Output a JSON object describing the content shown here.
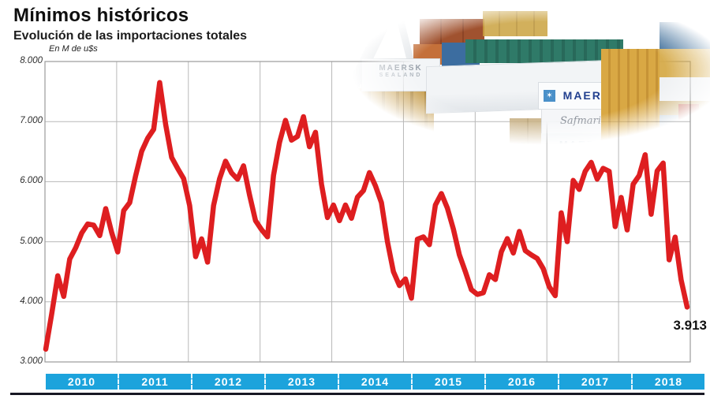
{
  "header": {
    "title": "Mínimos históricos",
    "subtitle": "Evolución de las importaciones totales"
  },
  "chart_data": {
    "type": "line",
    "title": "Evolución de las importaciones totales",
    "unit_label": "En M de u$s",
    "ylabel": "En M de u$s",
    "ylim": [
      3000,
      8000
    ],
    "yticks": [
      "8.000",
      "7.000",
      "6.000",
      "5.000",
      "4.000",
      "3.000"
    ],
    "ytick_values": [
      8000,
      7000,
      6000,
      5000,
      4000,
      3000
    ],
    "grid": true,
    "legend_position": "none",
    "years": [
      "2010",
      "2011",
      "2012",
      "2013",
      "2014",
      "2015",
      "2016",
      "2017",
      "2018"
    ],
    "points_per_year": 12,
    "series": [
      {
        "name": "Importaciones totales (M de u$s)",
        "values": [
          3213,
          3804,
          4434,
          4091,
          4712,
          4902,
          5146,
          5297,
          5275,
          5102,
          5551,
          5152,
          4831,
          5518,
          5651,
          6102,
          6505,
          6723,
          6871,
          7650,
          6952,
          6403,
          6220,
          6051,
          5602,
          4752,
          5048,
          4662,
          5603,
          6047,
          6341,
          6147,
          6041,
          6264,
          5781,
          5352,
          5202,
          5082,
          6104,
          6652,
          7021,
          6692,
          6753,
          7082,
          6581,
          6821,
          5961,
          5403,
          5611,
          5352,
          5612,
          5391,
          5741,
          5852,
          6151,
          5932,
          5651,
          5003,
          4502,
          4272,
          4382,
          4061,
          5042,
          5081,
          4952,
          5612,
          5802,
          5561,
          5211,
          4783,
          4502,
          4203,
          4123,
          4152,
          4452,
          4372,
          4832,
          5052,
          4812,
          5172,
          4852,
          4782,
          4722,
          4552,
          4252,
          4102,
          5482,
          5002,
          6021,
          5872,
          6172,
          6322,
          6042,
          6222,
          6172,
          5252,
          5737,
          5197,
          5958,
          6102,
          6447,
          5458,
          6179,
          6310,
          4699,
          5077,
          4365,
          3913
        ]
      }
    ],
    "annotation": {
      "label": "3.913",
      "value": 3913,
      "position": "last-point"
    },
    "colors": {
      "line": "#de1e20",
      "grid": "#b8b8b8",
      "frame": "#9b9b9b",
      "year_band": "#1ca3dc",
      "year_text": "#ffffff",
      "bottom_rule": "#181824"
    }
  },
  "photo": {
    "description": "container-port-photo",
    "labels": {
      "maersk_top": "MAERSK",
      "safmarine": "Safmarine",
      "maersk_bottom": "MAERSK",
      "sealand_line1": "MAERSK",
      "sealand_line2": "SEALAND",
      "star": "✶"
    }
  }
}
